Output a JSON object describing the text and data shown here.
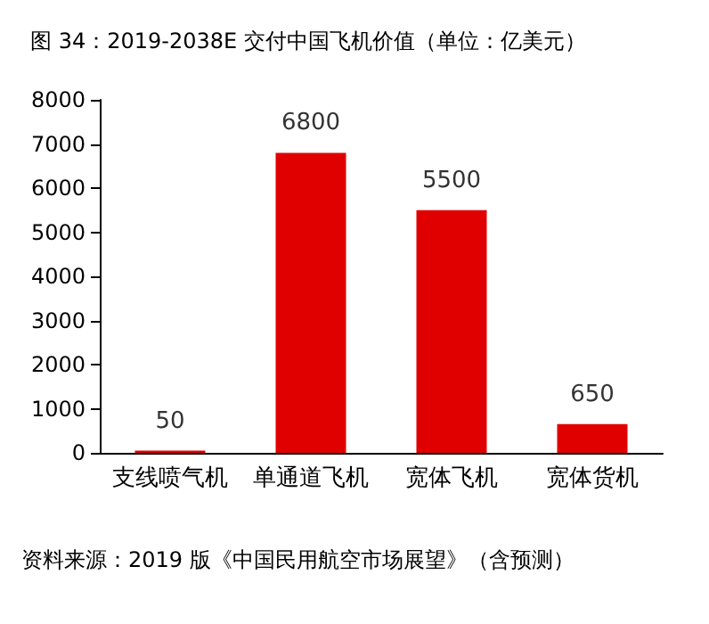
{
  "chart_data": {
    "type": "bar",
    "title": "图 34：2019-2038E 交付中国飞机价值（单位：亿美元）",
    "categories": [
      "支线喷气机",
      "单通道飞机",
      "宽体飞机",
      "宽体货机"
    ],
    "values": [
      50,
      6800,
      5500,
      650
    ],
    "color": "#e00000",
    "ylim": [
      0,
      8000
    ],
    "yticks": [
      0,
      1000,
      2000,
      3000,
      4000,
      5000,
      6000,
      7000,
      8000
    ],
    "grid": false,
    "data_labels": true,
    "annotations": [
      "资料来源：2019 版《中国民用航空市场展望》（含预测）"
    ]
  }
}
